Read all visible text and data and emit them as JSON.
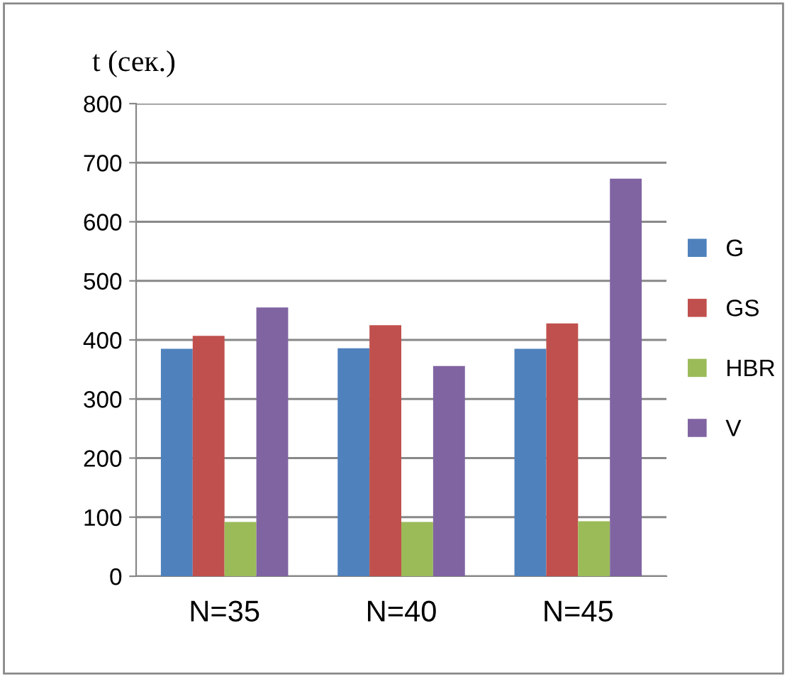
{
  "chart_data": {
    "type": "bar",
    "ylabel": "t (сек.)",
    "categories": [
      "N=35",
      "N=40",
      "N=45"
    ],
    "series": [
      {
        "name": "G",
        "color": "#4f81bd",
        "values": [
          385,
          386,
          385
        ]
      },
      {
        "name": "GS",
        "color": "#c0504d",
        "values": [
          407,
          425,
          428
        ]
      },
      {
        "name": "HBR",
        "color": "#9bbb59",
        "values": [
          92,
          92,
          93
        ]
      },
      {
        "name": "V",
        "color": "#8064a2",
        "values": [
          455,
          356,
          673
        ]
      }
    ],
    "ylim": [
      0,
      800
    ],
    "yticks": [
      0,
      100,
      200,
      300,
      400,
      500,
      600,
      700,
      800
    ],
    "grid": "y",
    "legend": "right"
  }
}
